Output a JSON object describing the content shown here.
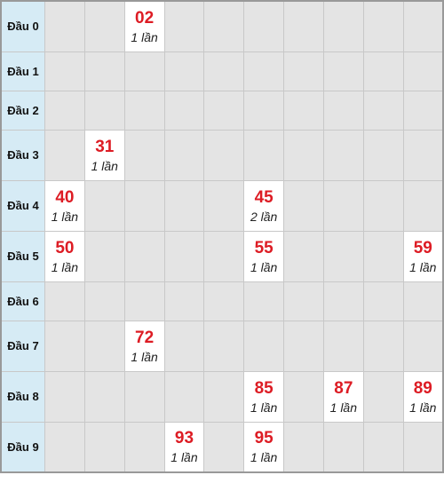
{
  "rows": [
    {
      "label": "Đầu 0",
      "cells": [
        null,
        null,
        {
          "number": "02",
          "count": "1 lần"
        },
        null,
        null,
        null,
        null,
        null,
        null,
        null
      ]
    },
    {
      "label": "Đầu 1",
      "cells": [
        null,
        null,
        null,
        null,
        null,
        null,
        null,
        null,
        null,
        null
      ]
    },
    {
      "label": "Đầu 2",
      "cells": [
        null,
        null,
        null,
        null,
        null,
        null,
        null,
        null,
        null,
        null
      ]
    },
    {
      "label": "Đầu 3",
      "cells": [
        null,
        {
          "number": "31",
          "count": "1 lần"
        },
        null,
        null,
        null,
        null,
        null,
        null,
        null,
        null
      ]
    },
    {
      "label": "Đầu 4",
      "cells": [
        {
          "number": "40",
          "count": "1 lần"
        },
        null,
        null,
        null,
        null,
        {
          "number": "45",
          "count": "2 lần"
        },
        null,
        null,
        null,
        null
      ]
    },
    {
      "label": "Đầu 5",
      "cells": [
        {
          "number": "50",
          "count": "1 lần"
        },
        null,
        null,
        null,
        null,
        {
          "number": "55",
          "count": "1 lần"
        },
        null,
        null,
        null,
        {
          "number": "59",
          "count": "1 lần"
        }
      ]
    },
    {
      "label": "Đầu 6",
      "cells": [
        null,
        null,
        null,
        null,
        null,
        null,
        null,
        null,
        null,
        null
      ]
    },
    {
      "label": "Đầu 7",
      "cells": [
        null,
        null,
        {
          "number": "72",
          "count": "1 lần"
        },
        null,
        null,
        null,
        null,
        null,
        null,
        null
      ]
    },
    {
      "label": "Đầu 8",
      "cells": [
        null,
        null,
        null,
        null,
        null,
        {
          "number": "85",
          "count": "1 lần"
        },
        null,
        {
          "number": "87",
          "count": "1 lần"
        },
        null,
        {
          "number": "89",
          "count": "1 lần"
        }
      ]
    },
    {
      "label": "Đầu 9",
      "cells": [
        null,
        null,
        null,
        {
          "number": "93",
          "count": "1 lần"
        },
        null,
        {
          "number": "95",
          "count": "1 lần"
        },
        null,
        null,
        null,
        null
      ]
    }
  ]
}
